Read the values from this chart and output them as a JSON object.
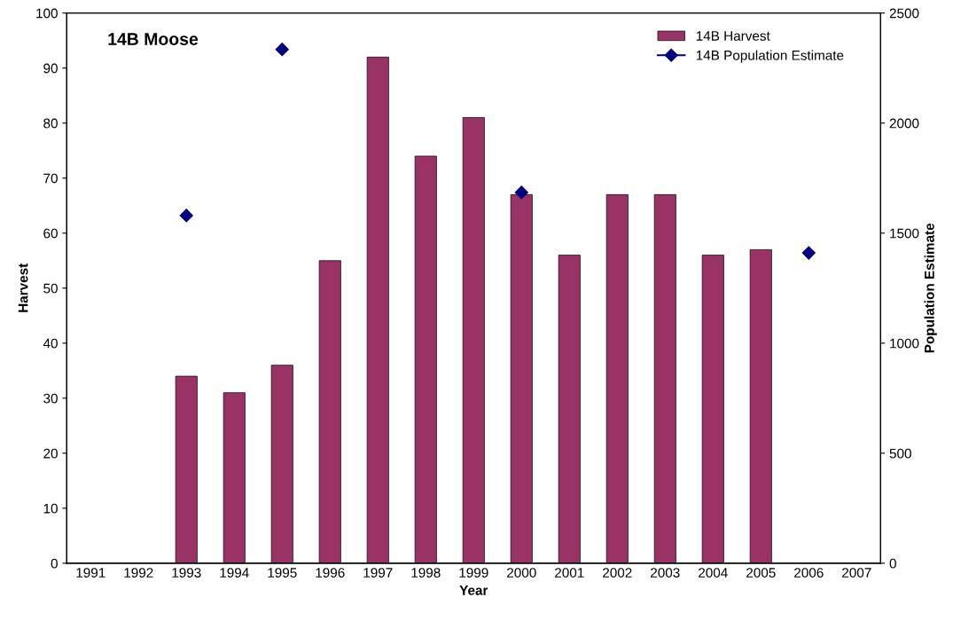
{
  "chart_data": {
    "type": "bar",
    "xlabel": "Year",
    "ylabel": "Harvest",
    "y2label": "Population Estimate",
    "categories": [
      "1991",
      "1992",
      "1993",
      "1994",
      "1995",
      "1996",
      "1997",
      "1998",
      "1999",
      "2000",
      "2001",
      "2002",
      "2003",
      "2004",
      "2005",
      "2006",
      "2007"
    ],
    "series": [
      {
        "name": "14B Harvest",
        "color": "#993366",
        "values": [
          null,
          null,
          34,
          31,
          36,
          55,
          92,
          74,
          81,
          67,
          56,
          67,
          67,
          56,
          57,
          null,
          null
        ]
      },
      {
        "name": "14B Population Estimate",
        "type": "line",
        "axis": "y2",
        "marker": "diamond",
        "color": "#000080",
        "values": [
          null,
          null,
          1580,
          null,
          2335,
          null,
          null,
          null,
          null,
          1685,
          null,
          null,
          null,
          null,
          null,
          1410,
          null
        ]
      }
    ],
    "ylim": [
      0,
      100
    ],
    "yticks": [
      0,
      10,
      20,
      30,
      40,
      50,
      60,
      70,
      80,
      90,
      100
    ],
    "y2lim": [
      0,
      2500
    ],
    "y2ticks": [
      0,
      500,
      1000,
      1500,
      2000,
      2500
    ],
    "annotations": [
      "14B Moose"
    ],
    "legend": "top right",
    "grid": false
  }
}
